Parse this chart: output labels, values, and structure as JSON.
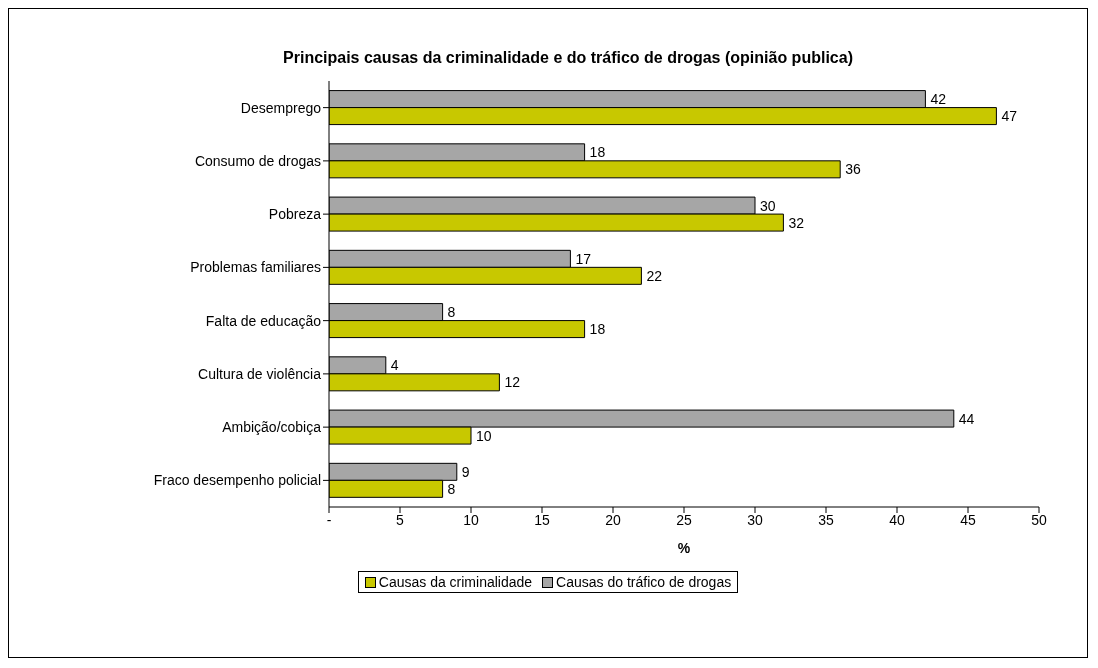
{
  "chart_data": {
    "type": "bar",
    "orientation": "horizontal",
    "title": "Principais causas da criminalidade e do tráfico de drogas (opinião publica)",
    "xlabel": "%",
    "categories": [
      "Desemprego",
      "Consumo de drogas",
      "Pobreza",
      "Problemas familiares",
      "Falta de educação",
      "Cultura de violência",
      "Ambição/cobiça",
      "Fraco desempenho policial"
    ],
    "series": [
      {
        "name": "Causas da criminalidade",
        "color": "#c8c800",
        "values": [
          47,
          36,
          32,
          22,
          18,
          12,
          10,
          8
        ]
      },
      {
        "name": "Causas do tráfico de drogas",
        "color": "#a6a6a6",
        "values": [
          42,
          18,
          30,
          17,
          8,
          4,
          44,
          9
        ]
      }
    ],
    "xlim": [
      0,
      50
    ],
    "xticks": [
      {
        "value": 0,
        "label": "-"
      },
      5,
      10,
      15,
      20,
      25,
      30,
      35,
      40,
      45,
      50
    ],
    "data_labels": true,
    "legend": "bottom",
    "grid": false
  }
}
